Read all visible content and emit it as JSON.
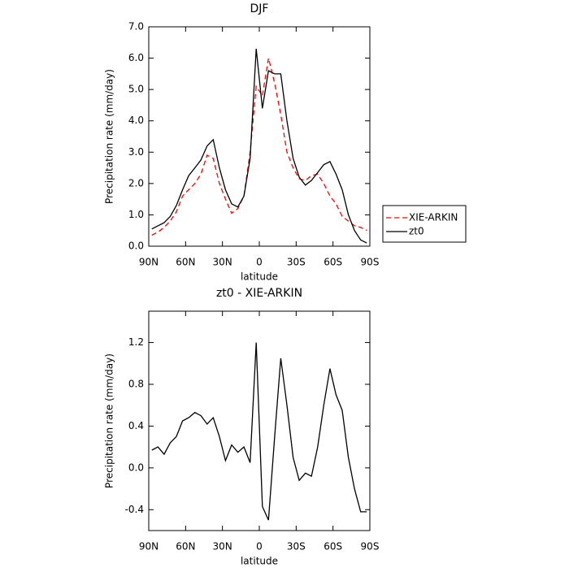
{
  "chart_data": [
    {
      "type": "line",
      "title": "DJF",
      "xlabel": "latitude",
      "ylabel": "Precipitation rate (mm/day)",
      "x": [
        87.5,
        82.5,
        77.5,
        72.5,
        67.5,
        62.5,
        57.5,
        52.5,
        47.5,
        42.5,
        37.5,
        32.5,
        27.5,
        22.5,
        17.5,
        12.5,
        7.5,
        2.5,
        -2.5,
        -7.5,
        -12.5,
        -17.5,
        -22.5,
        -27.5,
        -32.5,
        -37.5,
        -42.5,
        -47.5,
        -52.5,
        -57.5,
        -62.5,
        -67.5,
        -72.5,
        -77.5,
        -82.5,
        -87.5
      ],
      "series": [
        {
          "name": "XIE-ARKIN",
          "color": "#ff0000",
          "linestyle": "dashed",
          "values": [
            0.35,
            0.45,
            0.6,
            0.8,
            1.1,
            1.6,
            1.8,
            2.0,
            2.3,
            2.9,
            2.8,
            2.0,
            1.5,
            1.05,
            1.2,
            1.6,
            3.0,
            5.1,
            4.8,
            6.0,
            5.2,
            4.2,
            3.0,
            2.5,
            2.15,
            2.1,
            2.25,
            2.3,
            2.0,
            1.6,
            1.35,
            0.95,
            0.8,
            0.65,
            0.6,
            0.5
          ]
        },
        {
          "name": "zt0",
          "color": "#000000",
          "linestyle": "solid",
          "values": [
            0.55,
            0.65,
            0.75,
            0.95,
            1.3,
            1.8,
            2.25,
            2.5,
            2.75,
            3.2,
            3.4,
            2.5,
            1.8,
            1.35,
            1.25,
            1.6,
            2.8,
            6.3,
            4.4,
            5.6,
            5.5,
            5.5,
            4.0,
            2.8,
            2.2,
            1.95,
            2.1,
            2.35,
            2.6,
            2.7,
            2.3,
            1.8,
            1.0,
            0.5,
            0.2,
            0.1
          ]
        }
      ],
      "xlim": [
        90,
        -90
      ],
      "xticks": [
        {
          "value": 90,
          "label": "90N"
        },
        {
          "value": 60,
          "label": "60N"
        },
        {
          "value": 30,
          "label": "30N"
        },
        0,
        {
          "value": -30,
          "label": "30S"
        },
        {
          "value": -60,
          "label": "60S"
        },
        {
          "value": -90,
          "label": "90S"
        }
      ],
      "ylim": [
        0,
        7
      ],
      "yticks": [
        {
          "value": 0,
          "label": "0.0"
        },
        {
          "value": 1,
          "label": "1.0"
        },
        {
          "value": 2,
          "label": "2.0"
        },
        {
          "value": 3,
          "label": "3.0"
        },
        {
          "value": 4,
          "label": "4.0"
        },
        {
          "value": 5,
          "label": "5.0"
        },
        {
          "value": 6,
          "label": "6.0"
        },
        {
          "value": 7,
          "label": "7.0"
        }
      ],
      "legend": "right"
    },
    {
      "type": "line",
      "title": "zt0 - XIE-ARKIN",
      "xlabel": "latitude",
      "ylabel": "Precipitation rate (mm/day)",
      "x": [
        87.5,
        82.5,
        77.5,
        72.5,
        67.5,
        62.5,
        57.5,
        52.5,
        47.5,
        42.5,
        37.5,
        32.5,
        27.5,
        22.5,
        17.5,
        12.5,
        7.5,
        2.5,
        -2.5,
        -7.5,
        -12.5,
        -17.5,
        -22.5,
        -27.5,
        -32.5,
        -37.5,
        -42.5,
        -47.5,
        -52.5,
        -57.5,
        -62.5,
        -67.5,
        -72.5,
        -77.5,
        -82.5,
        -87.5
      ],
      "series": [
        {
          "color": "#000000",
          "linestyle": "solid",
          "values": [
            0.17,
            0.2,
            0.13,
            0.24,
            0.3,
            0.45,
            0.48,
            0.53,
            0.5,
            0.42,
            0.48,
            0.3,
            0.07,
            0.22,
            0.15,
            0.2,
            0.05,
            1.2,
            -0.37,
            -0.5,
            0.3,
            1.05,
            0.6,
            0.1,
            -0.12,
            -0.05,
            -0.08,
            0.2,
            0.6,
            0.95,
            0.7,
            0.55,
            0.1,
            -0.2,
            -0.42,
            -0.42
          ]
        }
      ],
      "xlim": [
        90,
        -90
      ],
      "xticks": [
        {
          "value": 90,
          "label": "90N"
        },
        {
          "value": 60,
          "label": "60N"
        },
        {
          "value": 30,
          "label": "30N"
        },
        0,
        {
          "value": -30,
          "label": "30S"
        },
        {
          "value": -60,
          "label": "60S"
        },
        {
          "value": -90,
          "label": "90S"
        }
      ],
      "ylim": [
        -0.6,
        1.5
      ],
      "yticks": [
        -0.4,
        {
          "value": 0,
          "label": "0.0"
        },
        0.4,
        0.8,
        1.2
      ]
    }
  ]
}
